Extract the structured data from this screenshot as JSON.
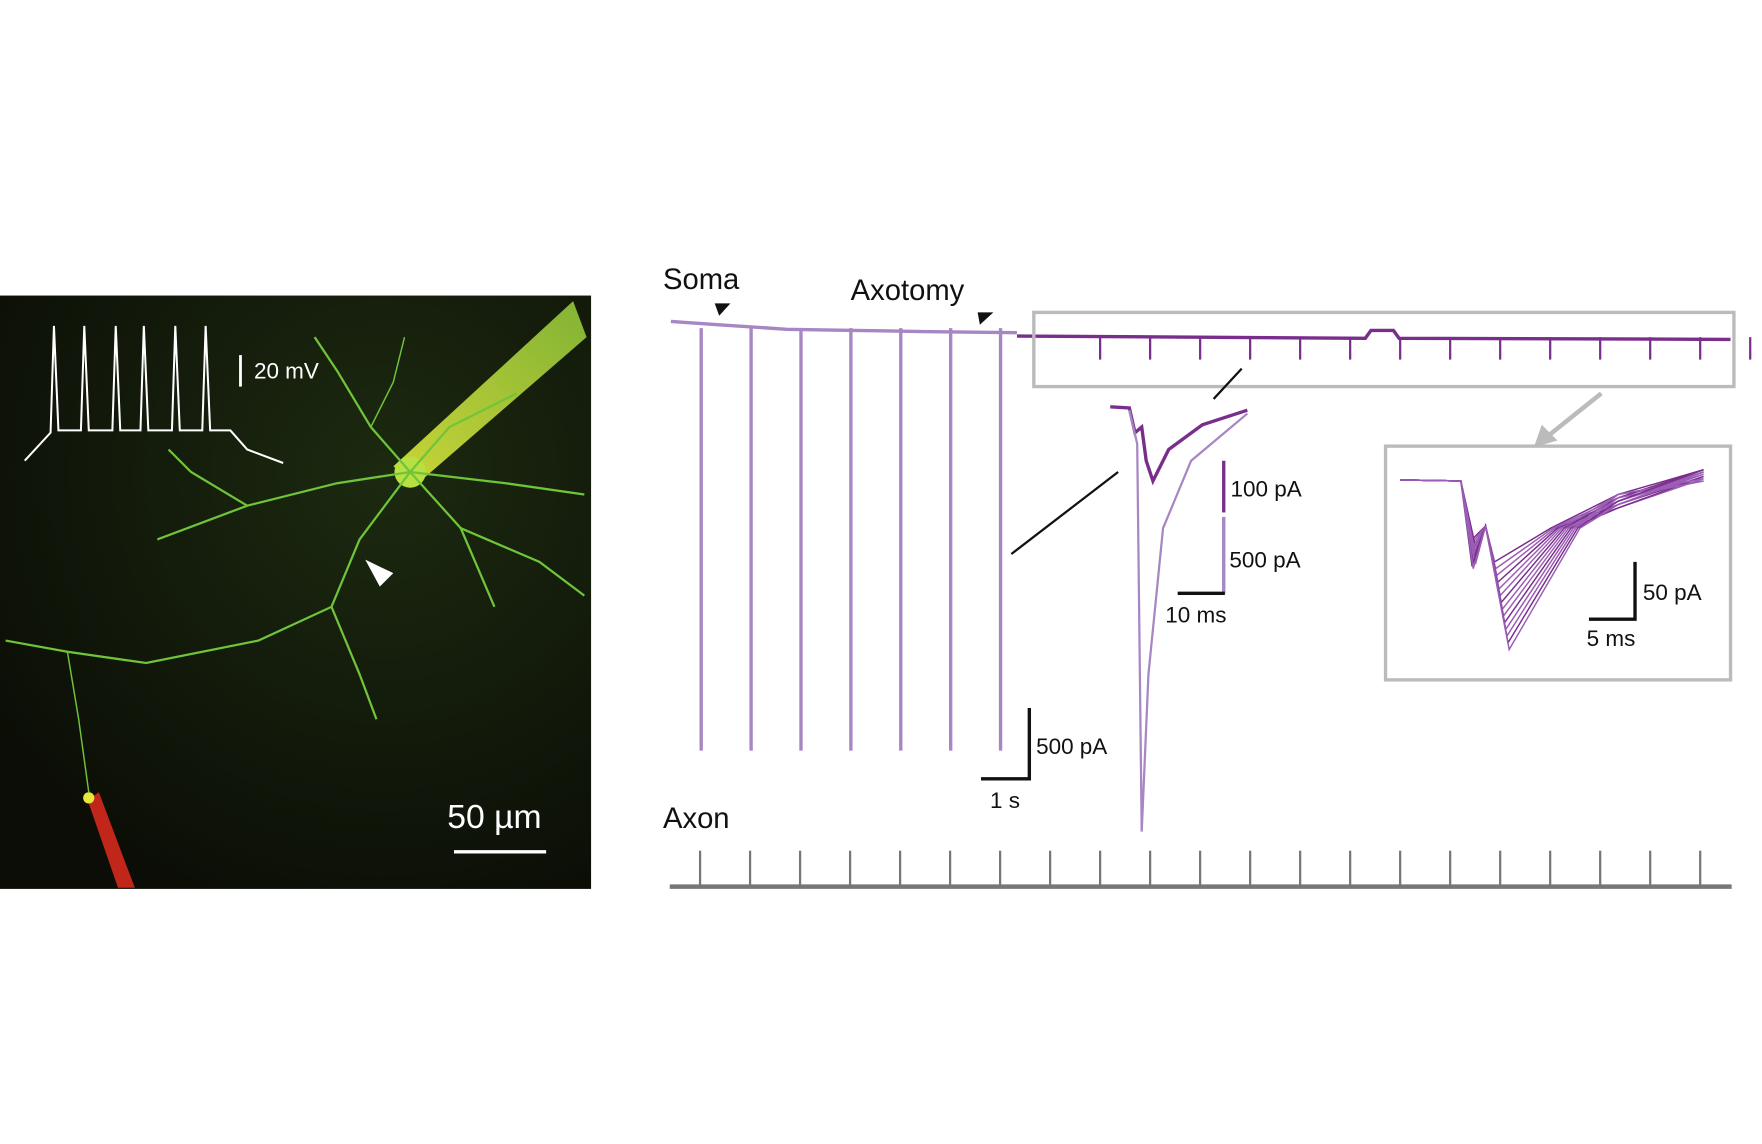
{
  "micrograph": {
    "voltage_scale": "20 mV",
    "length_scale": "50 µm"
  },
  "recording": {
    "soma_label": "Soma",
    "axotomy_label": "Axotomy",
    "axon_label": "Axon",
    "zoom_current_scale_small": "100 pA",
    "zoom_current_scale_large": "500 pA",
    "zoom_time_scale": "10 ms",
    "current_scale": "500 pA",
    "time_scale": "1 s"
  },
  "inset": {
    "current_scale": "50 pA",
    "time_scale": "5 ms"
  }
}
